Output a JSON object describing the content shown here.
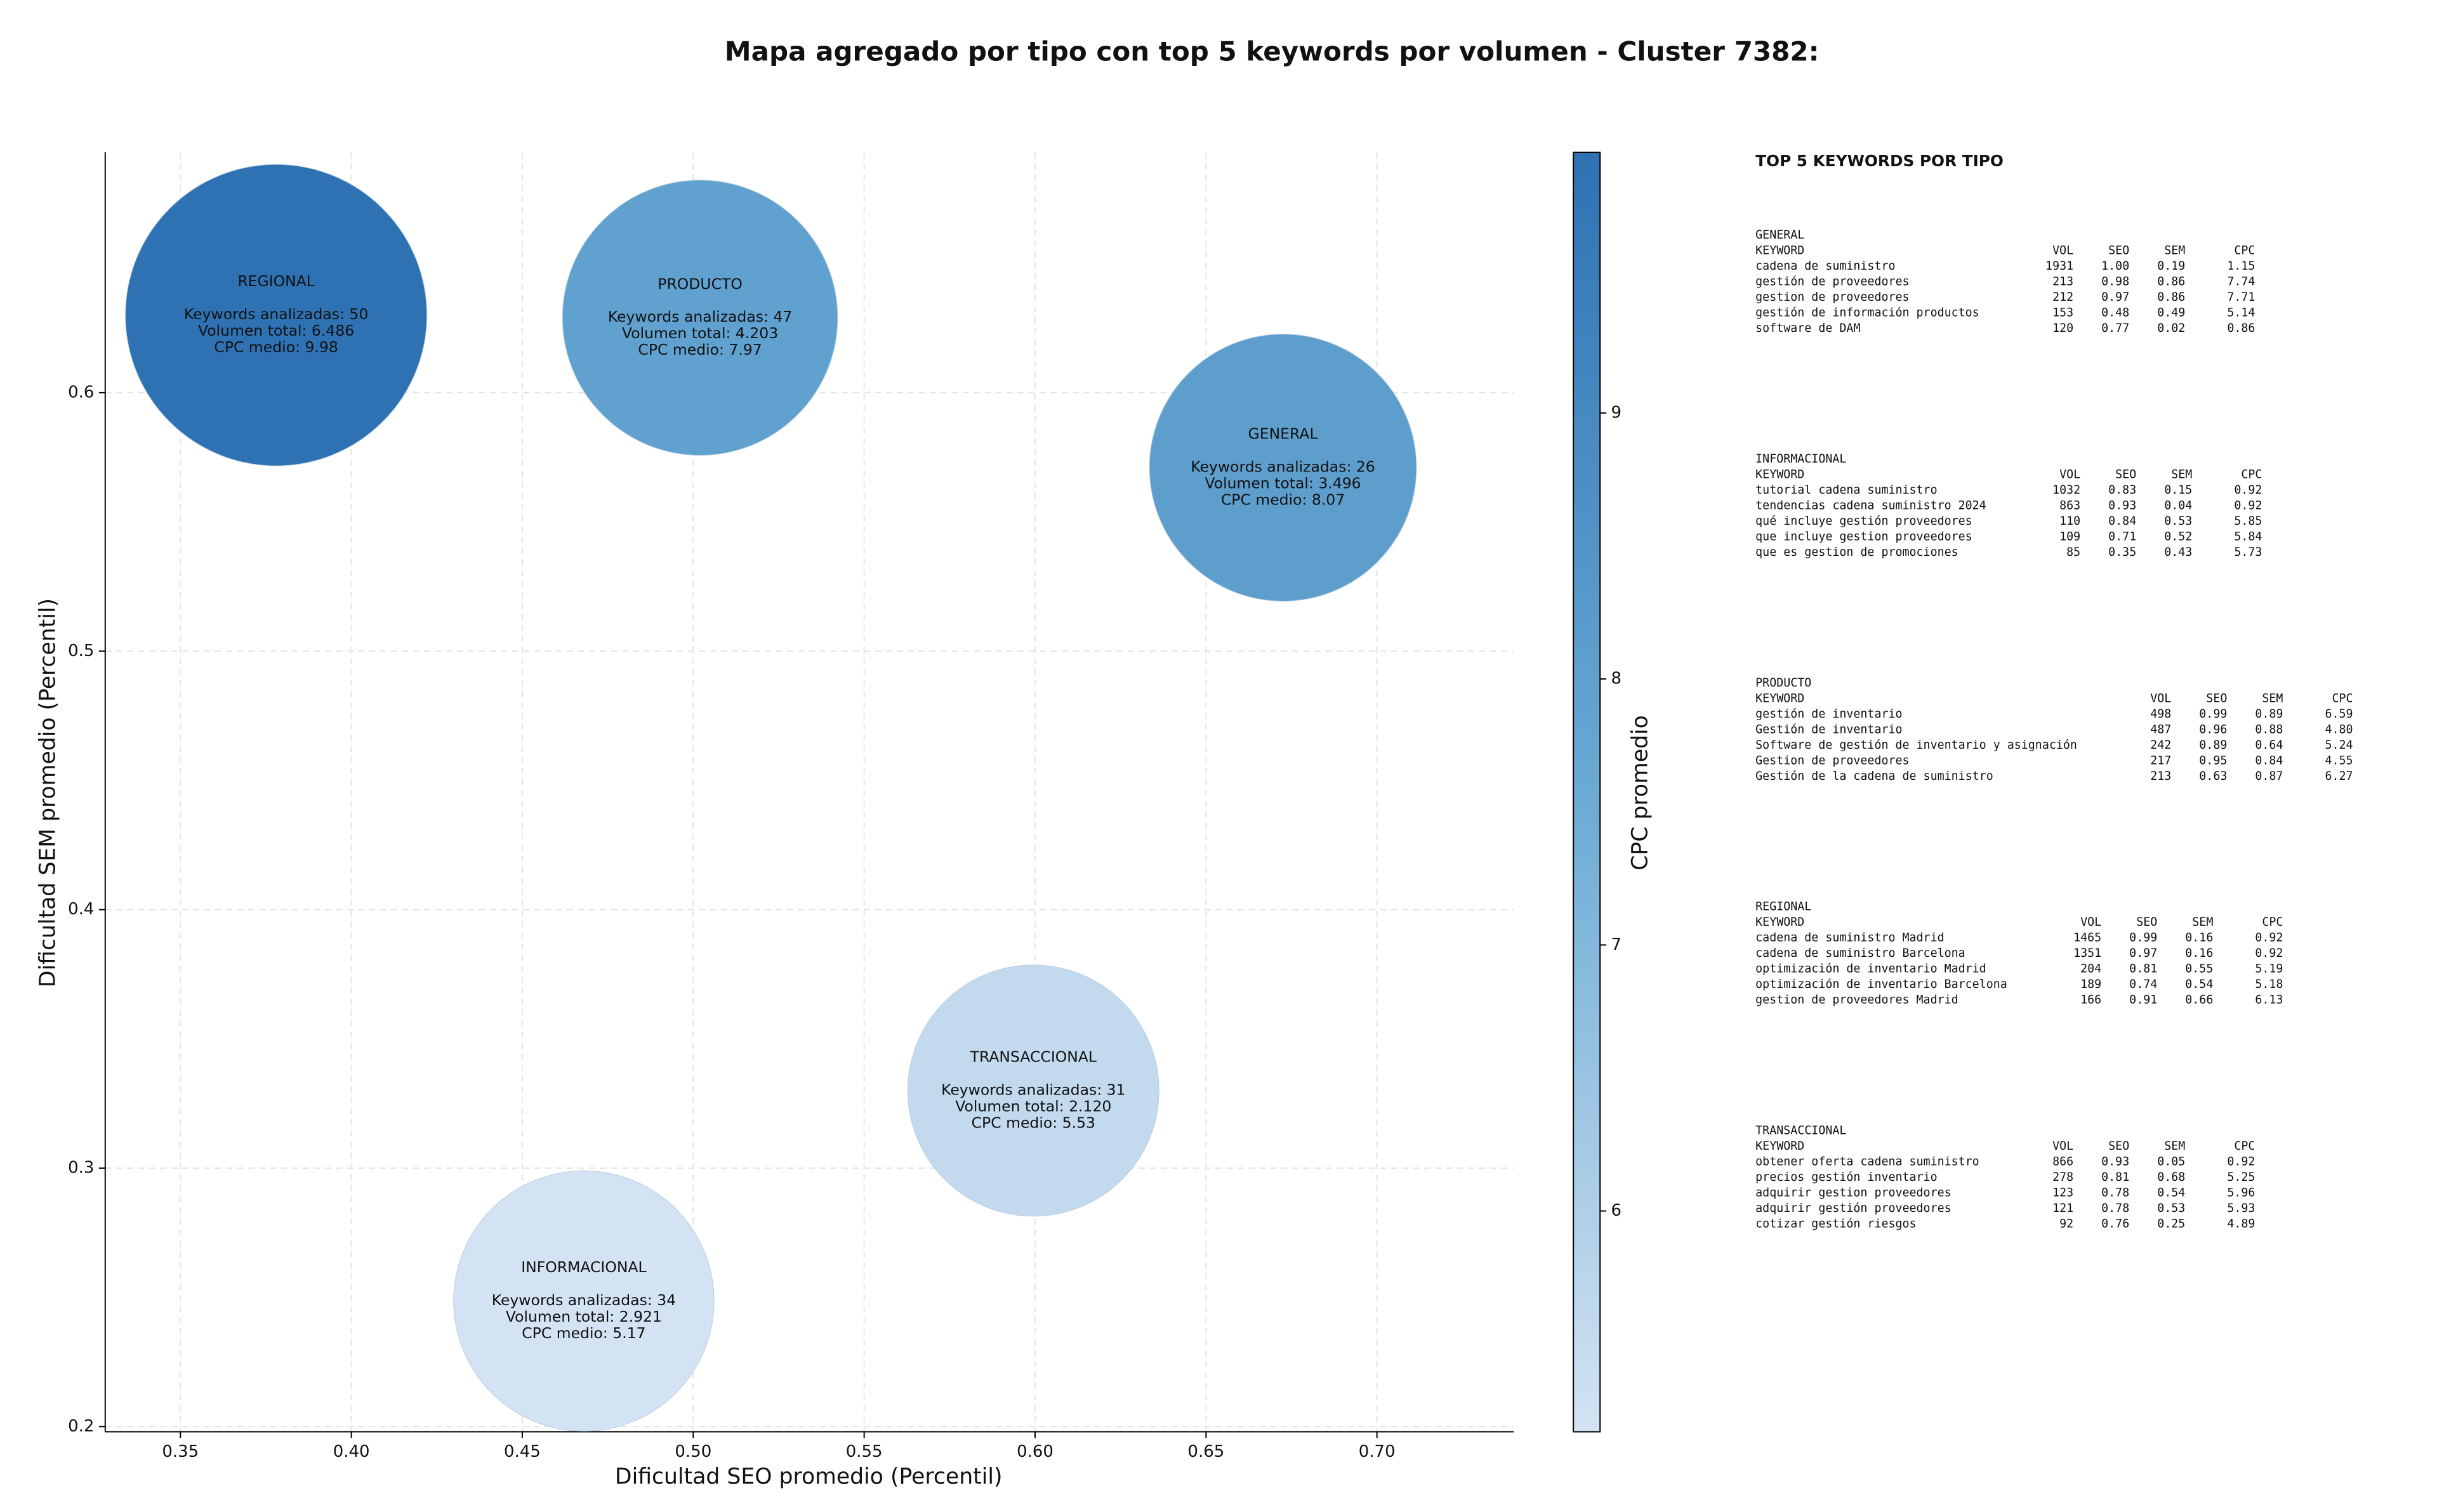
{
  "chart_data": {
    "type": "bubble",
    "title": "Mapa agregado por tipo con top 5 keywords por volumen - Cluster 7382:",
    "x_label": "Dificultad SEO promedio (Percentil)",
    "y_label": "Dificultad SEM promedio (Percentil)",
    "colorbar_label": "CPC promedio",
    "xlim": [
      0.328,
      0.74
    ],
    "ylim": [
      0.198,
      0.693
    ],
    "xticks": [
      0.35,
      {
        "value": 0.4,
        "label": "0.40"
      },
      0.45,
      {
        "value": 0.5,
        "label": "0.50"
      },
      0.55,
      {
        "value": 0.6,
        "label": "0.60"
      },
      0.65,
      {
        "value": 0.7,
        "label": "0.70"
      }
    ],
    "yticks": [
      0.2,
      0.3,
      0.4,
      0.5,
      0.6
    ],
    "clim": [
      5.17,
      9.98
    ],
    "cticks": [
      6,
      7,
      8,
      9
    ],
    "colormap": [
      "#d3e3f3",
      "#6aaad4",
      "#2e72b3"
    ],
    "grid": true,
    "points": [
      {
        "label": "REGIONAL",
        "x": 0.378,
        "y": 0.63,
        "size": 6486,
        "cpc": 9.98,
        "text": [
          "Keywords analizadas: 50",
          "Volumen total: 6.486",
          "CPC medio: 9.98"
        ]
      },
      {
        "label": "PRODUCTO",
        "x": 0.502,
        "y": 0.629,
        "size": 4203,
        "cpc": 7.97,
        "text": [
          "Keywords analizadas: 47",
          "Volumen total: 4.203",
          "CPC medio: 7.97"
        ]
      },
      {
        "label": "GENERAL",
        "x": 0.6725,
        "y": 0.571,
        "size": 3496,
        "cpc": 8.07,
        "text": [
          "Keywords analizadas: 26",
          "Volumen total: 3.496",
          "CPC medio: 8.07"
        ]
      },
      {
        "label": "TRANSACCIONAL",
        "x": 0.5995,
        "y": 0.33,
        "size": 2120,
        "cpc": 5.53,
        "text": [
          "Keywords analizadas: 31",
          "Volumen total: 2.120",
          "CPC medio: 5.53"
        ]
      },
      {
        "label": "INFORMACIONAL",
        "x": 0.468,
        "y": 0.2486,
        "size": 2921,
        "cpc": 5.17,
        "text": [
          "Keywords analizadas: 34",
          "Volumen total: 2.921",
          "CPC medio: 5.17"
        ]
      }
    ]
  },
  "panel": {
    "title": "TOP 5 KEYWORDS POR TIPO",
    "header": [
      "KEYWORD",
      "VOL",
      "SEO",
      "SEM",
      "CPC"
    ],
    "groups": [
      {
        "name": "GENERAL",
        "rows": [
          [
            "cadena de suministro",
            "1931",
            "1.00",
            "0.19",
            "1.15"
          ],
          [
            "gestión de proveedores",
            "213",
            "0.98",
            "0.86",
            "7.74"
          ],
          [
            "gestion de proveedores",
            "212",
            "0.97",
            "0.86",
            "7.71"
          ],
          [
            "gestión de información productos",
            "153",
            "0.48",
            "0.49",
            "5.14"
          ],
          [
            "software de DAM",
            "120",
            "0.77",
            "0.02",
            "0.86"
          ]
        ]
      },
      {
        "name": "INFORMACIONAL",
        "rows": [
          [
            "tutorial cadena suministro",
            "1032",
            "0.83",
            "0.15",
            "0.92"
          ],
          [
            "tendencias cadena suministro 2024",
            "863",
            "0.93",
            "0.04",
            "0.92"
          ],
          [
            "qué incluye gestión proveedores",
            "110",
            "0.84",
            "0.53",
            "5.85"
          ],
          [
            "que incluye gestion proveedores",
            "109",
            "0.71",
            "0.52",
            "5.84"
          ],
          [
            "que es gestion de promociones",
            "85",
            "0.35",
            "0.43",
            "5.73"
          ]
        ]
      },
      {
        "name": "PRODUCTO",
        "rows": [
          [
            "gestión de inventario",
            "498",
            "0.99",
            "0.89",
            "6.59"
          ],
          [
            "Gestión de inventario",
            "487",
            "0.96",
            "0.88",
            "4.80"
          ],
          [
            "Software de gestión de inventario y asignación",
            "242",
            "0.89",
            "0.64",
            "5.24"
          ],
          [
            "Gestion de proveedores",
            "217",
            "0.95",
            "0.84",
            "4.55"
          ],
          [
            "Gestión de la cadena de suministro",
            "213",
            "0.63",
            "0.87",
            "6.27"
          ]
        ]
      },
      {
        "name": "REGIONAL",
        "rows": [
          [
            "cadena de suministro Madrid",
            "1465",
            "0.99",
            "0.16",
            "0.92"
          ],
          [
            "cadena de suministro Barcelona",
            "1351",
            "0.97",
            "0.16",
            "0.92"
          ],
          [
            "optimización de inventario Madrid",
            "204",
            "0.81",
            "0.55",
            "5.19"
          ],
          [
            "optimización de inventario Barcelona",
            "189",
            "0.74",
            "0.54",
            "5.18"
          ],
          [
            "gestion de proveedores Madrid",
            "166",
            "0.91",
            "0.66",
            "6.13"
          ]
        ]
      },
      {
        "name": "TRANSACCIONAL",
        "rows": [
          [
            "obtener oferta cadena suministro",
            "866",
            "0.93",
            "0.05",
            "0.92"
          ],
          [
            "precios gestión inventario",
            "278",
            "0.81",
            "0.68",
            "5.25"
          ],
          [
            "adquirir gestion proveedores",
            "123",
            "0.78",
            "0.54",
            "5.96"
          ],
          [
            "adquirir gestión proveedores",
            "121",
            "0.78",
            "0.53",
            "5.93"
          ],
          [
            "cotizar gestión riesgos",
            "92",
            "0.76",
            "0.25",
            "4.89"
          ]
        ]
      }
    ]
  }
}
